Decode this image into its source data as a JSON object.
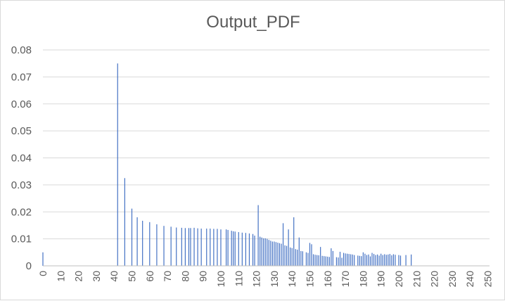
{
  "chart_data": {
    "type": "bar",
    "title": "Output_PDF",
    "xlabel": "",
    "ylabel": "",
    "xlim": [
      0,
      251
    ],
    "ylim": [
      0,
      0.08
    ],
    "y_ticks": [
      0,
      0.01,
      0.02,
      0.03,
      0.04,
      0.05,
      0.06,
      0.07,
      0.08
    ],
    "y_tick_labels": [
      "0",
      "0.01",
      "0.02",
      "0.03",
      "0.04",
      "0.05",
      "0.06",
      "0.07",
      "0.08"
    ],
    "x_ticks": [
      0,
      10,
      20,
      30,
      40,
      50,
      60,
      70,
      80,
      90,
      100,
      110,
      120,
      130,
      140,
      150,
      160,
      170,
      180,
      190,
      200,
      210,
      220,
      230,
      240,
      250
    ],
    "grid": true,
    "legend": "none",
    "bar_color": "#4472c4",
    "series": [
      {
        "x": [
          0,
          42,
          46,
          50,
          53,
          56,
          60,
          64,
          68,
          72,
          75,
          78,
          80,
          82,
          83,
          85,
          87,
          89,
          92,
          94,
          96,
          98,
          100,
          103,
          104,
          106,
          107,
          108,
          110,
          112,
          114,
          116,
          118,
          119,
          121,
          122,
          123,
          124,
          125,
          126,
          127,
          128,
          129,
          130,
          131,
          132,
          133,
          134,
          135,
          136,
          137,
          138,
          139,
          140,
          141,
          142,
          143,
          144,
          145,
          146,
          148,
          149,
          150,
          151,
          152,
          153,
          154,
          155,
          156,
          157,
          158,
          159,
          160,
          161,
          162,
          163,
          165,
          166,
          167,
          168,
          169,
          170,
          171,
          172,
          173,
          174,
          175,
          177,
          178,
          179,
          180,
          181,
          182,
          183,
          184,
          185,
          186,
          187,
          188,
          189,
          190,
          191,
          192,
          193,
          194,
          195,
          196,
          197,
          198,
          200,
          201,
          204,
          207
        ],
        "values": [
          0.005,
          0.075,
          0.0325,
          0.0212,
          0.018,
          0.0167,
          0.0162,
          0.0154,
          0.0148,
          0.0145,
          0.0142,
          0.0141,
          0.014,
          0.014,
          0.014,
          0.0141,
          0.0139,
          0.0138,
          0.0138,
          0.0138,
          0.0137,
          0.0137,
          0.0135,
          0.0135,
          0.0133,
          0.013,
          0.0128,
          0.0127,
          0.0125,
          0.0123,
          0.0122,
          0.012,
          0.0118,
          0.0112,
          0.0225,
          0.0108,
          0.0105,
          0.0102,
          0.0102,
          0.01,
          0.0096,
          0.0093,
          0.009,
          0.009,
          0.0088,
          0.0086,
          0.0084,
          0.0082,
          0.0158,
          0.0076,
          0.0074,
          0.0135,
          0.0068,
          0.0066,
          0.018,
          0.0062,
          0.006,
          0.0105,
          0.0055,
          0.0054,
          0.005,
          0.0048,
          0.0085,
          0.008,
          0.0043,
          0.0041,
          0.004,
          0.0039,
          0.007,
          0.0037,
          0.0036,
          0.0035,
          0.0034,
          0.0033,
          0.0065,
          0.0055,
          0.0032,
          0.0031,
          0.0052,
          0.003,
          0.0048,
          0.0046,
          0.0045,
          0.0044,
          0.0043,
          0.0042,
          0.004,
          0.0038,
          0.0037,
          0.0036,
          0.005,
          0.0045,
          0.004,
          0.0042,
          0.0035,
          0.0048,
          0.0044,
          0.004,
          0.0042,
          0.0038,
          0.0045,
          0.004,
          0.0043,
          0.0041,
          0.0042,
          0.0044,
          0.0039,
          0.0043,
          0.0041,
          0.004,
          0.0038,
          0.004,
          0.0042
        ]
      }
    ]
  }
}
